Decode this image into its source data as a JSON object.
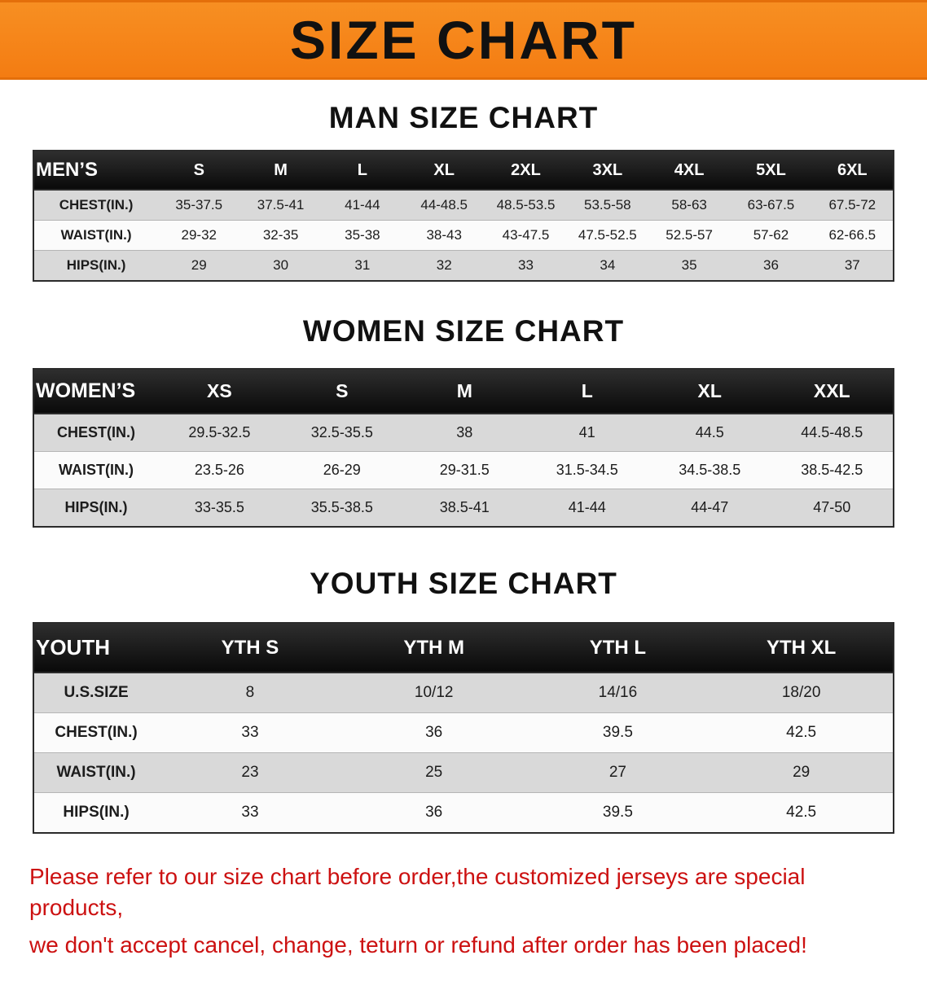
{
  "banner": {
    "title": "SIZE CHART",
    "bg_color": "#f6821f"
  },
  "sections": [
    {
      "heading": "MAN SIZE CHART",
      "table": {
        "header": [
          "MEN’S",
          "S",
          "M",
          "L",
          "XL",
          "2XL",
          "3XL",
          "4XL",
          "5XL",
          "6XL"
        ],
        "rows": [
          [
            "CHEST(IN.)",
            "35-37.5",
            "37.5-41",
            "41-44",
            "44-48.5",
            "48.5-53.5",
            "53.5-58",
            "58-63",
            "63-67.5",
            "67.5-72"
          ],
          [
            "WAIST(IN.)",
            "29-32",
            "32-35",
            "35-38",
            "38-43",
            "43-47.5",
            "47.5-52.5",
            "52.5-57",
            "57-62",
            "62-66.5"
          ],
          [
            "HIPS(IN.)",
            "29",
            "30",
            "31",
            "32",
            "33",
            "34",
            "35",
            "36",
            "37"
          ]
        ]
      }
    },
    {
      "heading": "WOMEN SIZE CHART",
      "table": {
        "header": [
          "WOMEN’S",
          "XS",
          "S",
          "M",
          "L",
          "XL",
          "XXL"
        ],
        "rows": [
          [
            "CHEST(IN.)",
            "29.5-32.5",
            "32.5-35.5",
            "38",
            "41",
            "44.5",
            "44.5-48.5"
          ],
          [
            "WAIST(IN.)",
            "23.5-26",
            "26-29",
            "29-31.5",
            "31.5-34.5",
            "34.5-38.5",
            "38.5-42.5"
          ],
          [
            "HIPS(IN.)",
            "33-35.5",
            "35.5-38.5",
            "38.5-41",
            "41-44",
            "44-47",
            "47-50"
          ]
        ]
      }
    },
    {
      "heading": "YOUTH SIZE CHART",
      "table": {
        "header": [
          "YOUTH",
          "YTH S",
          "YTH M",
          "YTH L",
          "YTH XL"
        ],
        "rows": [
          [
            "U.S.SIZE",
            "8",
            "10/12",
            "14/16",
            "18/20"
          ],
          [
            "CHEST(IN.)",
            "33",
            "36",
            "39.5",
            "42.5"
          ],
          [
            "WAIST(IN.)",
            "23",
            "25",
            "27",
            "29"
          ],
          [
            "HIPS(IN.)",
            "33",
            "36",
            "39.5",
            "42.5"
          ]
        ]
      }
    }
  ],
  "footer": {
    "line1": "Please refer to our size chart before order,the customized jerseys are special products,",
    "line2": "we don't accept cancel, change, teturn or refund after order has been placed!"
  }
}
